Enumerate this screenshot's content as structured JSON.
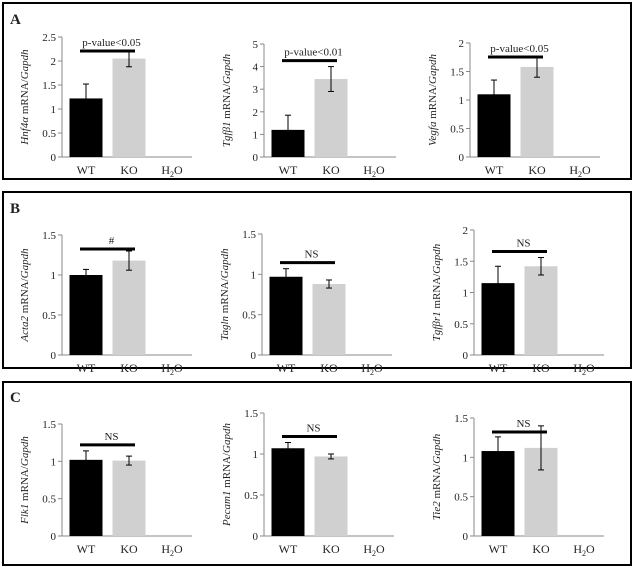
{
  "panels": [
    {
      "label": "A"
    },
    {
      "label": "B"
    },
    {
      "label": "C"
    }
  ],
  "chart_data": [
    {
      "type": "bar",
      "panel": "A",
      "ylabel_gene": "Hnf4α",
      "ylabel_rest": " mRNA/",
      "ylabel_ref": "Gapdh",
      "categories": [
        "WT",
        "KO",
        "H2O"
      ],
      "values": [
        1.22,
        2.05,
        0
      ],
      "errors": [
        0.3,
        0.17,
        0
      ],
      "ylim": [
        0,
        2.5
      ],
      "yticks": [
        0,
        0.5,
        1,
        1.5,
        2,
        2.5
      ],
      "annotation": "p-value<0.05",
      "bar_colors": [
        "#000000",
        "#d0d0d0",
        "#d0d0d0"
      ]
    },
    {
      "type": "bar",
      "panel": "A",
      "ylabel_gene": "Tgfβ1",
      "ylabel_rest": " mRNA/",
      "ylabel_ref": "Gapdh",
      "categories": [
        "WT",
        "KO",
        "H2O"
      ],
      "values": [
        1.2,
        3.45,
        0
      ],
      "errors": [
        0.65,
        0.55,
        0
      ],
      "ylim": [
        0,
        5
      ],
      "yticks": [
        0,
        1,
        2,
        3,
        4,
        5
      ],
      "annotation": "p-value<0.01",
      "bar_colors": [
        "#000000",
        "#d0d0d0",
        "#d0d0d0"
      ]
    },
    {
      "type": "bar",
      "panel": "A",
      "ylabel_gene": "Vegfa",
      "ylabel_rest": " mRNA/",
      "ylabel_ref": "Gapdh",
      "categories": [
        "WT",
        "KO",
        "H2O"
      ],
      "values": [
        1.1,
        1.58,
        0
      ],
      "errors": [
        0.25,
        0.18,
        0
      ],
      "ylim": [
        0,
        2
      ],
      "yticks": [
        0,
        0.5,
        1,
        1.5,
        2
      ],
      "annotation": "p-value<0.05",
      "bar_colors": [
        "#000000",
        "#d0d0d0",
        "#d0d0d0"
      ]
    },
    {
      "type": "bar",
      "panel": "B",
      "ylabel_gene": "Acta2",
      "ylabel_rest": " mRNA/",
      "ylabel_ref": "Gapdh",
      "categories": [
        "WT",
        "KO",
        "H2O"
      ],
      "values": [
        1.0,
        1.18,
        0
      ],
      "errors": [
        0.07,
        0.12,
        0
      ],
      "ylim": [
        0,
        1.5
      ],
      "yticks": [
        0,
        0.5,
        1,
        1.5
      ],
      "annotation": "#",
      "bar_colors": [
        "#000000",
        "#d0d0d0",
        "#d0d0d0"
      ]
    },
    {
      "type": "bar",
      "panel": "B",
      "ylabel_gene": "Tagln",
      "ylabel_rest": " mRNA/",
      "ylabel_ref": "Gapdh",
      "categories": [
        "WT",
        "KO",
        "H2O"
      ],
      "values": [
        0.97,
        0.88,
        0
      ],
      "errors": [
        0.1,
        0.05,
        0
      ],
      "ylim": [
        0,
        1.5
      ],
      "yticks": [
        0,
        0.5,
        1,
        1.5
      ],
      "annotation": "NS",
      "bar_colors": [
        "#000000",
        "#d0d0d0",
        "#d0d0d0"
      ]
    },
    {
      "type": "bar",
      "panel": "B",
      "ylabel_gene": "Tgfβr1",
      "ylabel_rest": " mRNA/",
      "ylabel_ref": "Gapdh",
      "categories": [
        "WT",
        "KO",
        "H2O"
      ],
      "values": [
        1.15,
        1.42,
        0
      ],
      "errors": [
        0.27,
        0.14,
        0
      ],
      "ylim": [
        0,
        2
      ],
      "yticks": [
        0,
        0.5,
        1,
        1.5,
        2
      ],
      "annotation": "NS",
      "bar_colors": [
        "#000000",
        "#d0d0d0",
        "#d0d0d0"
      ]
    },
    {
      "type": "bar",
      "panel": "C",
      "ylabel_gene": "Flk1",
      "ylabel_rest": " mRNA/",
      "ylabel_ref": "Gapdh",
      "categories": [
        "WT",
        "KO",
        "H2O"
      ],
      "values": [
        1.02,
        1.01,
        0
      ],
      "errors": [
        0.12,
        0.06,
        0
      ],
      "ylim": [
        0,
        1.5
      ],
      "yticks": [
        0,
        0.5,
        1,
        1.5
      ],
      "annotation": "NS",
      "bar_colors": [
        "#000000",
        "#d0d0d0",
        "#d0d0d0"
      ]
    },
    {
      "type": "bar",
      "panel": "C",
      "ylabel_gene": "Pecam1",
      "ylabel_rest": " mRNA/",
      "ylabel_ref": "Gapdh",
      "categories": [
        "WT",
        "KO",
        "H2O"
      ],
      "values": [
        1.07,
        0.97,
        0
      ],
      "errors": [
        0.07,
        0.03,
        0
      ],
      "ylim": [
        0,
        1.5
      ],
      "yticks": [
        0,
        0.5,
        1,
        1.5
      ],
      "annotation": "NS",
      "bar_colors": [
        "#000000",
        "#d0d0d0",
        "#d0d0d0"
      ]
    },
    {
      "type": "bar",
      "panel": "C",
      "ylabel_gene": "Tie2",
      "ylabel_rest": " mRNA/",
      "ylabel_ref": "Gapdh",
      "categories": [
        "WT",
        "KO",
        "H2O"
      ],
      "values": [
        1.08,
        1.12,
        0
      ],
      "errors": [
        0.18,
        0.28,
        0
      ],
      "ylim": [
        0,
        1.5
      ],
      "yticks": [
        0,
        0.5,
        1,
        1.5
      ],
      "annotation": "NS",
      "bar_colors": [
        "#000000",
        "#d0d0d0",
        "#d0d0d0"
      ]
    }
  ]
}
